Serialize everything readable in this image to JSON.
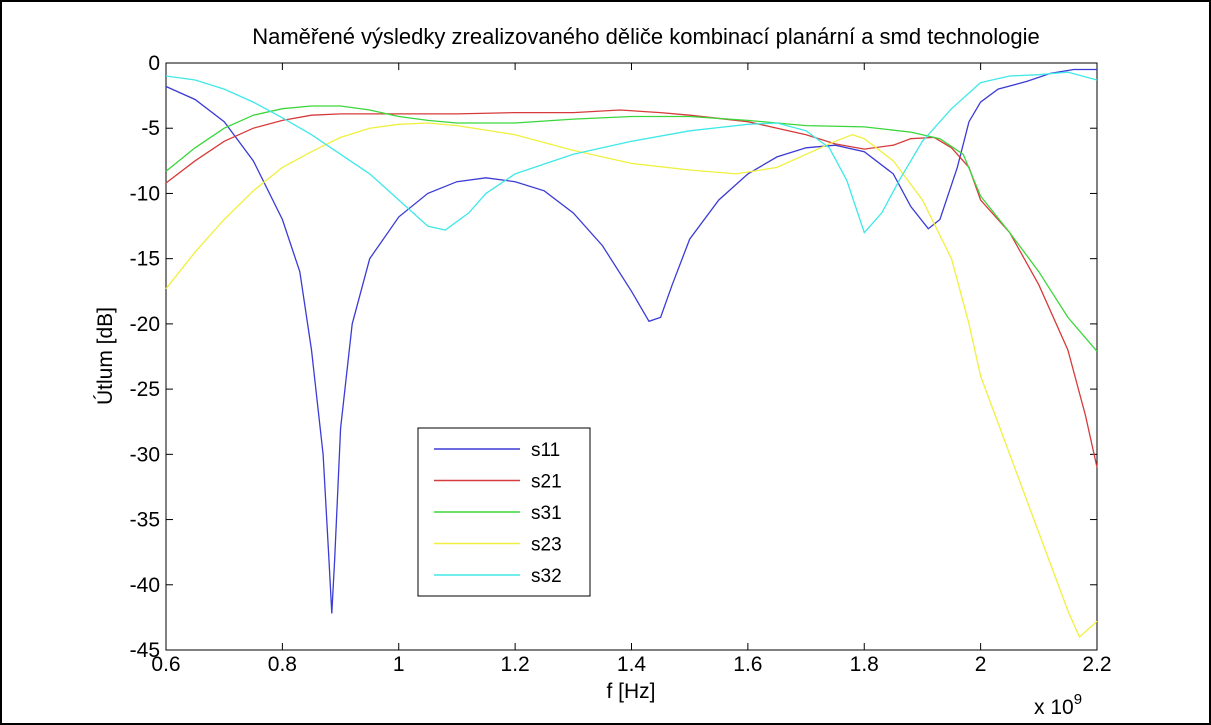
{
  "chart_data": {
    "type": "line",
    "title": "Naměřené výsledky zrealizovaného děliče kombinací planární a smd technologie",
    "xlabel": "f [Hz]",
    "ylabel": "Útlum [dB]",
    "x_exponent_label": "x 10",
    "x_exponent_power": "9",
    "xlim": [
      0.6,
      2.2
    ],
    "ylim": [
      -45,
      0
    ],
    "xticks": [
      0.6,
      0.8,
      1,
      1.2,
      1.4,
      1.6,
      1.8,
      2,
      2.2
    ],
    "xtick_labels": [
      "0.6",
      "0.8",
      "1",
      "1.2",
      "1.4",
      "1.6",
      "1.8",
      "2",
      "2.2"
    ],
    "yticks": [
      0,
      -5,
      -10,
      -15,
      -20,
      -25,
      -30,
      -35,
      -40,
      -45
    ],
    "ytick_labels": [
      "0",
      "-5",
      "-10",
      "-15",
      "-20",
      "-25",
      "-30",
      "-35",
      "-40",
      "-45"
    ],
    "grid": false,
    "legend_position": "lower-left",
    "series": [
      {
        "name": "s11",
        "color": "#3b3bd6",
        "points": [
          [
            0.6,
            -1.8
          ],
          [
            0.65,
            -2.8
          ],
          [
            0.7,
            -4.5
          ],
          [
            0.75,
            -7.5
          ],
          [
            0.8,
            -12
          ],
          [
            0.83,
            -16
          ],
          [
            0.85,
            -22
          ],
          [
            0.87,
            -30
          ],
          [
            0.88,
            -38
          ],
          [
            0.885,
            -42.2
          ],
          [
            0.89,
            -38
          ],
          [
            0.9,
            -28
          ],
          [
            0.92,
            -20
          ],
          [
            0.95,
            -15
          ],
          [
            1.0,
            -11.8
          ],
          [
            1.05,
            -10
          ],
          [
            1.1,
            -9.1
          ],
          [
            1.15,
            -8.8
          ],
          [
            1.2,
            -9.1
          ],
          [
            1.25,
            -9.8
          ],
          [
            1.3,
            -11.5
          ],
          [
            1.35,
            -14
          ],
          [
            1.4,
            -17.5
          ],
          [
            1.43,
            -19.8
          ],
          [
            1.45,
            -19.5
          ],
          [
            1.47,
            -17
          ],
          [
            1.5,
            -13.5
          ],
          [
            1.55,
            -10.5
          ],
          [
            1.6,
            -8.5
          ],
          [
            1.65,
            -7.2
          ],
          [
            1.7,
            -6.5
          ],
          [
            1.75,
            -6.3
          ],
          [
            1.8,
            -6.8
          ],
          [
            1.85,
            -8.5
          ],
          [
            1.88,
            -11
          ],
          [
            1.91,
            -12.7
          ],
          [
            1.93,
            -12
          ],
          [
            1.96,
            -8
          ],
          [
            1.98,
            -4.5
          ],
          [
            2.0,
            -3
          ],
          [
            2.03,
            -2
          ],
          [
            2.08,
            -1.4
          ],
          [
            2.12,
            -0.8
          ],
          [
            2.16,
            -0.5
          ],
          [
            2.2,
            -0.5
          ]
        ]
      },
      {
        "name": "s21",
        "color": "#d63b3b",
        "points": [
          [
            0.6,
            -9.2
          ],
          [
            0.65,
            -7.5
          ],
          [
            0.7,
            -6
          ],
          [
            0.75,
            -5
          ],
          [
            0.8,
            -4.4
          ],
          [
            0.85,
            -4
          ],
          [
            0.9,
            -3.9
          ],
          [
            1.0,
            -3.9
          ],
          [
            1.1,
            -3.9
          ],
          [
            1.2,
            -3.8
          ],
          [
            1.3,
            -3.8
          ],
          [
            1.38,
            -3.6
          ],
          [
            1.45,
            -3.8
          ],
          [
            1.5,
            -4
          ],
          [
            1.6,
            -4.5
          ],
          [
            1.7,
            -5.5
          ],
          [
            1.75,
            -6.2
          ],
          [
            1.8,
            -6.6
          ],
          [
            1.85,
            -6.3
          ],
          [
            1.88,
            -5.8
          ],
          [
            1.92,
            -5.7
          ],
          [
            1.95,
            -6.5
          ],
          [
            1.98,
            -8
          ],
          [
            2.0,
            -10.5
          ],
          [
            2.05,
            -13
          ],
          [
            2.1,
            -17
          ],
          [
            2.15,
            -22
          ],
          [
            2.18,
            -27
          ],
          [
            2.2,
            -31
          ]
        ]
      },
      {
        "name": "s31",
        "color": "#3bd63b",
        "points": [
          [
            0.6,
            -8.3
          ],
          [
            0.65,
            -6.5
          ],
          [
            0.7,
            -5
          ],
          [
            0.75,
            -4
          ],
          [
            0.8,
            -3.5
          ],
          [
            0.85,
            -3.3
          ],
          [
            0.9,
            -3.3
          ],
          [
            0.95,
            -3.6
          ],
          [
            1.0,
            -4.1
          ],
          [
            1.05,
            -4.4
          ],
          [
            1.1,
            -4.6
          ],
          [
            1.2,
            -4.6
          ],
          [
            1.3,
            -4.3
          ],
          [
            1.4,
            -4.1
          ],
          [
            1.5,
            -4.1
          ],
          [
            1.6,
            -4.4
          ],
          [
            1.7,
            -4.8
          ],
          [
            1.8,
            -4.9
          ],
          [
            1.88,
            -5.3
          ],
          [
            1.93,
            -5.8
          ],
          [
            1.97,
            -7
          ],
          [
            2.0,
            -10.2
          ],
          [
            2.05,
            -13
          ],
          [
            2.1,
            -16
          ],
          [
            2.15,
            -19.5
          ],
          [
            2.2,
            -22.1
          ]
        ]
      },
      {
        "name": "s23",
        "color": "#f0f040",
        "points": [
          [
            0.6,
            -17.3
          ],
          [
            0.65,
            -14.5
          ],
          [
            0.7,
            -12
          ],
          [
            0.75,
            -9.8
          ],
          [
            0.8,
            -8
          ],
          [
            0.85,
            -6.8
          ],
          [
            0.9,
            -5.7
          ],
          [
            0.95,
            -5
          ],
          [
            1.0,
            -4.7
          ],
          [
            1.05,
            -4.6
          ],
          [
            1.1,
            -4.8
          ],
          [
            1.2,
            -5.5
          ],
          [
            1.3,
            -6.7
          ],
          [
            1.4,
            -7.7
          ],
          [
            1.5,
            -8.2
          ],
          [
            1.58,
            -8.5
          ],
          [
            1.65,
            -8
          ],
          [
            1.7,
            -7
          ],
          [
            1.75,
            -6
          ],
          [
            1.78,
            -5.5
          ],
          [
            1.8,
            -5.8
          ],
          [
            1.85,
            -7.5
          ],
          [
            1.9,
            -10.5
          ],
          [
            1.95,
            -15
          ],
          [
            1.98,
            -20
          ],
          [
            2.0,
            -24
          ],
          [
            2.05,
            -30
          ],
          [
            2.1,
            -36
          ],
          [
            2.15,
            -42
          ],
          [
            2.17,
            -44
          ],
          [
            2.2,
            -42.8
          ]
        ]
      },
      {
        "name": "s32",
        "color": "#40e8e8",
        "points": [
          [
            0.6,
            -1
          ],
          [
            0.65,
            -1.3
          ],
          [
            0.7,
            -2
          ],
          [
            0.75,
            -3
          ],
          [
            0.8,
            -4.2
          ],
          [
            0.85,
            -5.5
          ],
          [
            0.9,
            -7
          ],
          [
            0.95,
            -8.5
          ],
          [
            1.0,
            -10.5
          ],
          [
            1.05,
            -12.5
          ],
          [
            1.08,
            -12.8
          ],
          [
            1.12,
            -11.5
          ],
          [
            1.15,
            -10
          ],
          [
            1.2,
            -8.5
          ],
          [
            1.3,
            -7
          ],
          [
            1.4,
            -6
          ],
          [
            1.5,
            -5.2
          ],
          [
            1.6,
            -4.7
          ],
          [
            1.65,
            -4.6
          ],
          [
            1.7,
            -5.2
          ],
          [
            1.74,
            -6.5
          ],
          [
            1.77,
            -9
          ],
          [
            1.8,
            -13
          ],
          [
            1.83,
            -11.5
          ],
          [
            1.86,
            -9
          ],
          [
            1.9,
            -6
          ],
          [
            1.95,
            -3.5
          ],
          [
            2.0,
            -1.5
          ],
          [
            2.05,
            -1
          ],
          [
            2.1,
            -0.9
          ],
          [
            2.15,
            -0.7
          ],
          [
            2.2,
            -1.3
          ]
        ]
      }
    ]
  }
}
